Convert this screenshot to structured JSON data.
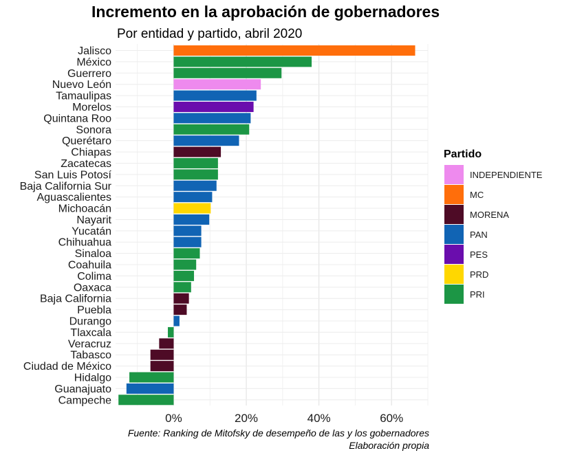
{
  "chart_data": {
    "type": "bar",
    "orientation": "horizontal",
    "title": "Incremento en la aprobación de gobernadores",
    "subtitle": "Por entidad y partido, abril 2020",
    "caption": [
      "Fuente: Ranking de Mitofsky de desempeño de las y los gobernadores",
      "Elaboración propia"
    ],
    "x_ticks": [
      "0%",
      "20%",
      "40%",
      "60%"
    ],
    "x_tick_values": [
      0,
      20,
      40,
      60
    ],
    "xlim": [
      -16,
      70
    ],
    "grid": true,
    "legend": {
      "title": "Partido",
      "position": "right",
      "items": [
        {
          "label": "INDEPENDIENTE",
          "color": "#EE8AEE"
        },
        {
          "label": "MC",
          "color": "#FF6E0B"
        },
        {
          "label": "MORENA",
          "color": "#4E0B26"
        },
        {
          "label": "PAN",
          "color": "#1164B4"
        },
        {
          "label": "PES",
          "color": "#6A0DAD"
        },
        {
          "label": "PRD",
          "color": "#FFD700"
        },
        {
          "label": "PRI",
          "color": "#1C9645"
        }
      ]
    },
    "bars": [
      {
        "state": "Jalisco",
        "value": 66.5,
        "party": "MC"
      },
      {
        "state": "México",
        "value": 38,
        "party": "PRI"
      },
      {
        "state": "Guerrero",
        "value": 29.7,
        "party": "PRI"
      },
      {
        "state": "Nuevo León",
        "value": 24,
        "party": "INDEPENDIENTE"
      },
      {
        "state": "Tamaulipas",
        "value": 22.8,
        "party": "PAN"
      },
      {
        "state": "Morelos",
        "value": 22,
        "party": "PES"
      },
      {
        "state": "Quintana Roo",
        "value": 21.2,
        "party": "PAN"
      },
      {
        "state": "Sonora",
        "value": 20.8,
        "party": "PRI"
      },
      {
        "state": "Querétaro",
        "value": 18,
        "party": "PAN"
      },
      {
        "state": "Chiapas",
        "value": 13,
        "party": "MORENA"
      },
      {
        "state": "Zacatecas",
        "value": 12.2,
        "party": "PRI"
      },
      {
        "state": "San Luis Potosí",
        "value": 12.2,
        "party": "PRI"
      },
      {
        "state": "Baja California Sur",
        "value": 11.8,
        "party": "PAN"
      },
      {
        "state": "Aguascalientes",
        "value": 10.6,
        "party": "PAN"
      },
      {
        "state": "Michoacán",
        "value": 10.2,
        "party": "PRD"
      },
      {
        "state": "Nayarit",
        "value": 9.8,
        "party": "PAN"
      },
      {
        "state": "Yucatán",
        "value": 7.6,
        "party": "PAN"
      },
      {
        "state": "Chihuahua",
        "value": 7.6,
        "party": "PAN"
      },
      {
        "state": "Sinaloa",
        "value": 7.2,
        "party": "PRI"
      },
      {
        "state": "Coahuila",
        "value": 6.2,
        "party": "PRI"
      },
      {
        "state": "Colima",
        "value": 5.6,
        "party": "PRI"
      },
      {
        "state": "Oaxaca",
        "value": 4.8,
        "party": "PRI"
      },
      {
        "state": "Baja California",
        "value": 4.2,
        "party": "MORENA"
      },
      {
        "state": "Puebla",
        "value": 3.6,
        "party": "MORENA"
      },
      {
        "state": "Durango",
        "value": 1.6,
        "party": "PAN"
      },
      {
        "state": "Tlaxcala",
        "value": -1.6,
        "party": "PRI"
      },
      {
        "state": "Veracruz",
        "value": -4,
        "party": "MORENA"
      },
      {
        "state": "Tabasco",
        "value": -6.4,
        "party": "MORENA"
      },
      {
        "state": "Ciudad de México",
        "value": -6.4,
        "party": "MORENA"
      },
      {
        "state": "Hidalgo",
        "value": -12.2,
        "party": "PRI"
      },
      {
        "state": "Guanajuato",
        "value": -13,
        "party": "PAN"
      },
      {
        "state": "Campeche",
        "value": -15.2,
        "party": "PRI"
      }
    ]
  }
}
